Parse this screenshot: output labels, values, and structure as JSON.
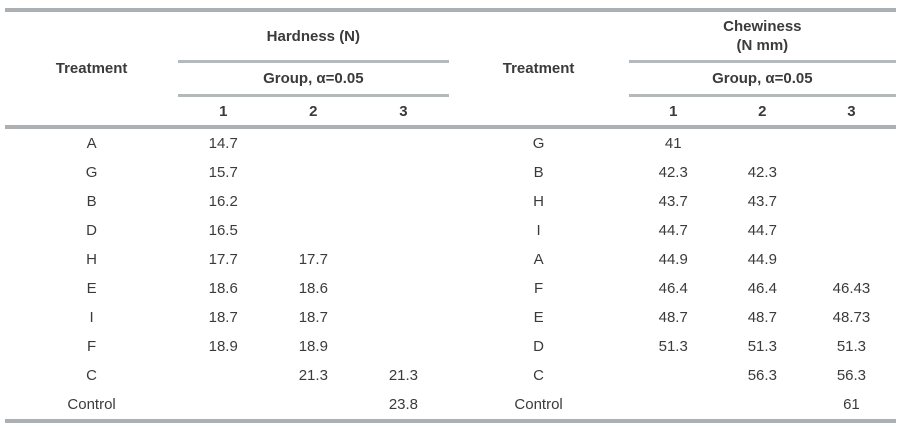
{
  "page": {
    "background": "#ffffff",
    "rule_color_thick": "#aab0b3",
    "rule_color_thin": "#b4b9bc",
    "text_color": "#3b3b3b"
  },
  "tables": [
    {
      "treatment_header": "Treatment",
      "measure_line1": "Hardness (N)",
      "measure_line2": "",
      "group_header": "Group, α=0.05",
      "columns": [
        "1",
        "2",
        "3"
      ],
      "rows": [
        {
          "treatment": "A",
          "g1": "14.7",
          "g2": "",
          "g3": ""
        },
        {
          "treatment": "G",
          "g1": "15.7",
          "g2": "",
          "g3": ""
        },
        {
          "treatment": "B",
          "g1": "16.2",
          "g2": "",
          "g3": ""
        },
        {
          "treatment": "D",
          "g1": "16.5",
          "g2": "",
          "g3": ""
        },
        {
          "treatment": "H",
          "g1": "17.7",
          "g2": "17.7",
          "g3": ""
        },
        {
          "treatment": "E",
          "g1": "18.6",
          "g2": "18.6",
          "g3": ""
        },
        {
          "treatment": "I",
          "g1": "18.7",
          "g2": "18.7",
          "g3": ""
        },
        {
          "treatment": "F",
          "g1": "18.9",
          "g2": "18.9",
          "g3": ""
        },
        {
          "treatment": "C",
          "g1": "",
          "g2": "21.3",
          "g3": "21.3"
        },
        {
          "treatment": "Control",
          "g1": "",
          "g2": "",
          "g3": "23.8"
        }
      ]
    },
    {
      "treatment_header": "Treatment",
      "measure_line1": "Chewiness",
      "measure_line2": "(N mm)",
      "group_header": "Group, α=0.05",
      "columns": [
        "1",
        "2",
        "3"
      ],
      "rows": [
        {
          "treatment": "G",
          "g1": "41",
          "g2": "",
          "g3": ""
        },
        {
          "treatment": "B",
          "g1": "42.3",
          "g2": "42.3",
          "g3": ""
        },
        {
          "treatment": "H",
          "g1": "43.7",
          "g2": "43.7",
          "g3": ""
        },
        {
          "treatment": "I",
          "g1": "44.7",
          "g2": "44.7",
          "g3": ""
        },
        {
          "treatment": "A",
          "g1": "44.9",
          "g2": "44.9",
          "g3": ""
        },
        {
          "treatment": "F",
          "g1": "46.4",
          "g2": "46.4",
          "g3": "46.43"
        },
        {
          "treatment": "E",
          "g1": "48.7",
          "g2": "48.7",
          "g3": "48.73"
        },
        {
          "treatment": "D",
          "g1": "51.3",
          "g2": "51.3",
          "g3": "51.3"
        },
        {
          "treatment": "C",
          "g1": "",
          "g2": "56.3",
          "g3": "56.3"
        },
        {
          "treatment": "Control",
          "g1": "",
          "g2": "",
          "g3": "61"
        }
      ]
    }
  ]
}
